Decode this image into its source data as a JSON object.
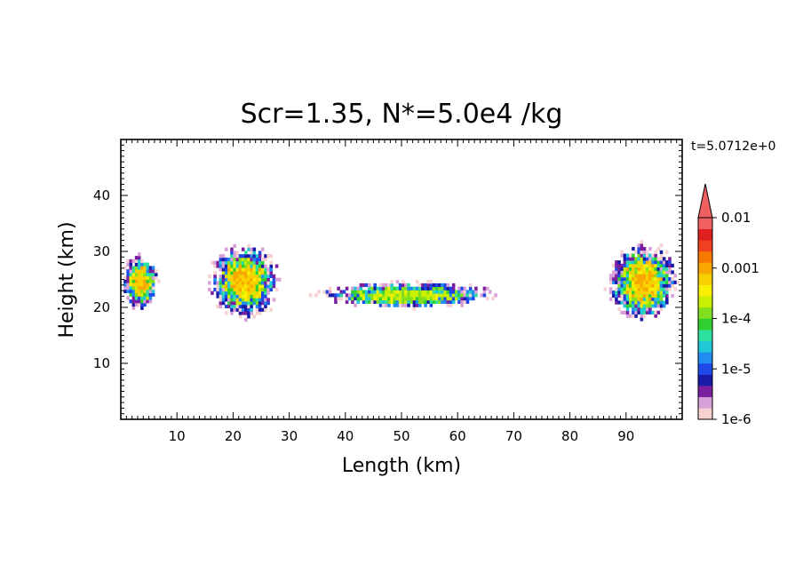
{
  "chart_data": {
    "type": "heatmap",
    "title": "Scr=1.35, N*=5.0e4 /kg",
    "time_label": "t=5.0712e+0",
    "xlabel": "Length (km)",
    "ylabel": "Height (km)",
    "xlim": [
      0,
      100
    ],
    "ylim": [
      0,
      50
    ],
    "x_ticks": [
      10,
      20,
      30,
      40,
      50,
      60,
      70,
      80,
      90
    ],
    "y_ticks": [
      10,
      20,
      30,
      40
    ],
    "colorbar": {
      "scale": "log",
      "range": [
        1e-06,
        0.01
      ],
      "extend": "max",
      "tick_labels": [
        "0.01",
        "0.001",
        "1e-4",
        "1e-5",
        "1e-6"
      ],
      "tick_values": [
        0.01,
        0.001,
        0.0001,
        1e-05,
        1e-06
      ],
      "colors": [
        "#f7d0d0",
        "#d8a0d8",
        "#7a1fa0",
        "#1a1aa8",
        "#1f48e8",
        "#1f8ef0",
        "#20c8d8",
        "#2ee0a0",
        "#30d030",
        "#80e020",
        "#c8f000",
        "#f8f000",
        "#f8d000",
        "#f8a800",
        "#f87800",
        "#f04020",
        "#e02020",
        "#f06060"
      ]
    },
    "features": [
      {
        "name": "left cloud",
        "x": [
          0,
          7
        ],
        "y": [
          19,
          30
        ],
        "core_value": 0.001
      },
      {
        "name": "turret",
        "x": [
          15,
          29
        ],
        "y": [
          17.5,
          32
        ],
        "core_value": 0.001
      },
      {
        "name": "central layer",
        "x": [
          32,
          70
        ],
        "y": [
          19.5,
          25
        ],
        "core_value": 0.0003
      },
      {
        "name": "right cloud",
        "x": [
          86,
          100
        ],
        "y": [
          17,
          32
        ],
        "core_value": 0.001
      }
    ]
  }
}
